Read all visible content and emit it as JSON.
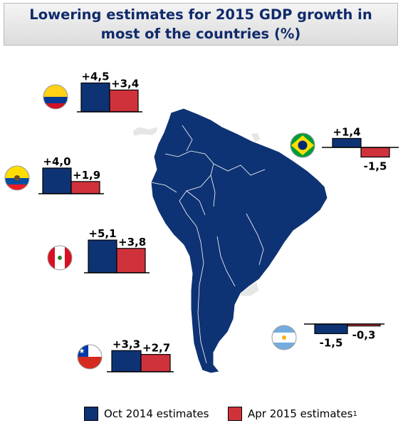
{
  "title": "Lowering estimates for 2015 GDP growth in most of the countries (%)",
  "colors": {
    "oct": "#0e3374",
    "apr": "#d0323b",
    "land": "#0e3374",
    "other_land": "#e6e6e6"
  },
  "legend": {
    "oct_label": "Oct 2014 estimates",
    "apr_label": "Apr 2015 estimates",
    "apr_sup": "1"
  },
  "chart_data": [
    {
      "type": "bar",
      "country": "Colombia",
      "flag": "colombia-flag",
      "categories": [
        "Oct 2014 estimates",
        "Apr 2015 estimates"
      ],
      "values": [
        4.5,
        3.4
      ],
      "labels": [
        "+4,5",
        "+3,4"
      ]
    },
    {
      "type": "bar",
      "country": "Ecuador",
      "flag": "ecuador-flag",
      "categories": [
        "Oct 2014 estimates",
        "Apr 2015 estimates"
      ],
      "values": [
        4.0,
        1.9
      ],
      "labels": [
        "+4,0",
        "+1,9"
      ]
    },
    {
      "type": "bar",
      "country": "Peru",
      "flag": "peru-flag",
      "categories": [
        "Oct 2014 estimates",
        "Apr 2015 estimates"
      ],
      "values": [
        5.1,
        3.8
      ],
      "labels": [
        "+5,1",
        "+3,8"
      ]
    },
    {
      "type": "bar",
      "country": "Chile",
      "flag": "chile-flag",
      "categories": [
        "Oct 2014 estimates",
        "Apr 2015 estimates"
      ],
      "values": [
        3.3,
        2.7
      ],
      "labels": [
        "+3,3",
        "+2,7"
      ]
    },
    {
      "type": "bar",
      "country": "Brazil",
      "flag": "brazil-flag",
      "categories": [
        "Oct 2014 estimates",
        "Apr 2015 estimates"
      ],
      "values": [
        1.4,
        -1.5
      ],
      "labels": [
        "+1,4",
        "-1,5"
      ]
    },
    {
      "type": "bar",
      "country": "Argentina",
      "flag": "argentina-flag",
      "categories": [
        "Oct 2014 estimates",
        "Apr 2015 estimates"
      ],
      "values": [
        -1.5,
        -0.3
      ],
      "labels": [
        "-1,5",
        "-0,3"
      ]
    }
  ]
}
